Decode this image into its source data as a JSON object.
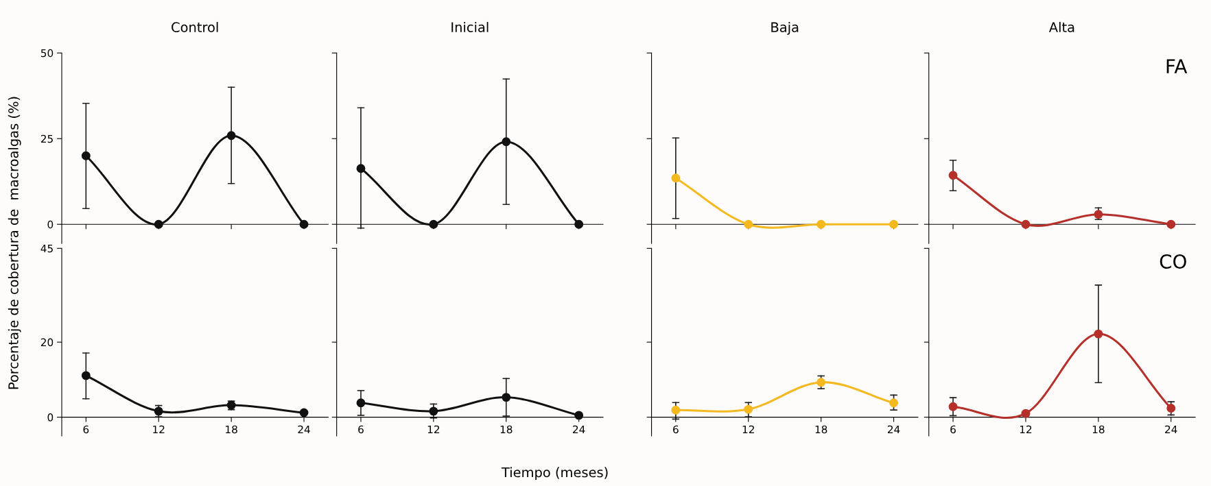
{
  "chart_data": [
    {
      "type": "line",
      "title": "Control",
      "ylabel": "Porcentaje de cobertura de  macroalgas (%)",
      "x": [
        6,
        12,
        18,
        24
      ],
      "xlim": [
        4,
        26
      ],
      "xticks": [
        6,
        12,
        18,
        24
      ],
      "ylim": [
        -5.6,
        50
      ],
      "yticks": [
        0,
        25,
        50
      ],
      "tick_labels": "y",
      "marker": "circle",
      "series": [
        {
          "color": "#111111",
          "values": [
            20,
            0,
            25.9,
            0
          ],
          "errors": [
            [
              4.6,
              35.3
            ],
            null,
            [
              11.9,
              40
            ],
            null
          ]
        }
      ]
    },
    {
      "type": "line",
      "title": "Inicial",
      "x": [
        6,
        12,
        18,
        24
      ],
      "xlim": [
        4,
        26
      ],
      "xticks": [
        6,
        12,
        18,
        24
      ],
      "ylim": [
        -5.6,
        50
      ],
      "yticks": [
        {
          "value": 0,
          "label": null
        },
        {
          "value": 25,
          "label": null
        },
        {
          "value": 50,
          "label": null
        }
      ],
      "tick_labels": false,
      "marker": "circle",
      "series": [
        {
          "color": "#111111",
          "values": [
            16.3,
            0,
            24.1,
            0
          ],
          "errors": [
            [
              -1.1,
              34
            ],
            null,
            [
              5.8,
              42.4
            ],
            null
          ]
        }
      ]
    },
    {
      "type": "line",
      "title": "Baja",
      "x": [
        6,
        12,
        18,
        24
      ],
      "xlim": [
        4,
        26
      ],
      "xticks": [
        6,
        12,
        18,
        24
      ],
      "ylim": [
        -5.6,
        50
      ],
      "yticks": [
        {
          "value": 0,
          "label": null
        },
        {
          "value": 25,
          "label": null
        },
        {
          "value": 50,
          "label": null
        }
      ],
      "tick_labels": false,
      "marker": "circle",
      "series": [
        {
          "color": "#f5b920",
          "values": [
            13.5,
            0,
            0,
            0
          ],
          "errors": [
            [
              1.7,
              25.2
            ],
            null,
            null,
            null
          ]
        }
      ]
    },
    {
      "type": "line",
      "title": "Alta",
      "annotations": [
        "FA"
      ],
      "x": [
        6,
        12,
        18,
        24
      ],
      "xlim": [
        4,
        26
      ],
      "xticks": [
        6,
        12,
        18,
        24
      ],
      "ylim": [
        -5.6,
        50
      ],
      "yticks": [
        {
          "value": 0,
          "label": null
        },
        {
          "value": 25,
          "label": null
        },
        {
          "value": 50,
          "label": null
        }
      ],
      "tick_labels": false,
      "marker": "circle",
      "series": [
        {
          "color": "#b5302a",
          "values": [
            14.3,
            0,
            2.9,
            0
          ],
          "errors": [
            [
              9.8,
              18.7
            ],
            null,
            [
              1.4,
              4.8
            ],
            null
          ]
        }
      ]
    },
    {
      "type": "line",
      "x": [
        6,
        12,
        18,
        24
      ],
      "xlim": [
        4,
        26
      ],
      "xticks": [
        6,
        12,
        18,
        24
      ],
      "ylim": [
        -5,
        45
      ],
      "yticks": [
        0,
        20,
        45
      ],
      "marker": "circle",
      "series": [
        {
          "color": "#111111",
          "values": [
            11.1,
            1.6,
            3.2,
            1.2
          ],
          "errors": [
            [
              4.9,
              17.1
            ],
            [
              0.1,
              3.1
            ],
            [
              2.0,
              4.3
            ],
            null
          ]
        }
      ]
    },
    {
      "type": "line",
      "xlabel": "Tiempo (meses)",
      "x": [
        6,
        12,
        18,
        24
      ],
      "xlim": [
        4,
        26
      ],
      "xticks": [
        6,
        12,
        18,
        24
      ],
      "ylim": [
        -5,
        45
      ],
      "yticks": [
        {
          "value": 0,
          "label": null
        },
        {
          "value": 20,
          "label": null
        },
        {
          "value": 45,
          "label": null
        }
      ],
      "tick_labels": "x",
      "marker": "circle",
      "series": [
        {
          "color": "#111111",
          "values": [
            3.8,
            1.6,
            5.3,
            0.5
          ],
          "errors": [
            [
              0.5,
              7.1
            ],
            [
              -0.2,
              3.5
            ],
            [
              0.3,
              10.3
            ],
            null
          ]
        }
      ]
    },
    {
      "type": "line",
      "x": [
        6,
        12,
        18,
        24
      ],
      "xlim": [
        4,
        26
      ],
      "xticks": [
        6,
        12,
        18,
        24
      ],
      "ylim": [
        -5,
        45
      ],
      "yticks": [
        {
          "value": 0,
          "label": null
        },
        {
          "value": 20,
          "label": null
        },
        {
          "value": 45,
          "label": null
        }
      ],
      "tick_labels": "x",
      "marker": "circle",
      "series": [
        {
          "color": "#f5b920",
          "values": [
            1.9,
            2.1,
            9.3,
            3.8
          ],
          "errors": [
            [
              -0.5,
              3.9
            ],
            [
              0.1,
              3.9
            ],
            [
              7.6,
              11.0
            ],
            [
              1.9,
              5.9
            ]
          ]
        }
      ]
    },
    {
      "type": "line",
      "annotations": [
        "CO"
      ],
      "x": [
        6,
        12,
        18,
        24
      ],
      "xlim": [
        4,
        26
      ],
      "xticks": [
        6,
        12,
        18,
        24
      ],
      "ylim": [
        -5,
        45
      ],
      "yticks": [
        {
          "value": 0,
          "label": null
        },
        {
          "value": 20,
          "label": null
        },
        {
          "value": 45,
          "label": null
        }
      ],
      "tick_labels": "x",
      "marker": "circle",
      "series": [
        {
          "color": "#b5302a",
          "values": [
            2.8,
            1.0,
            22.2,
            2.4
          ],
          "errors": [
            [
              0.4,
              5.2
            ],
            null,
            [
              9.2,
              35.2
            ],
            [
              0.6,
              4.1
            ]
          ]
        }
      ]
    }
  ]
}
